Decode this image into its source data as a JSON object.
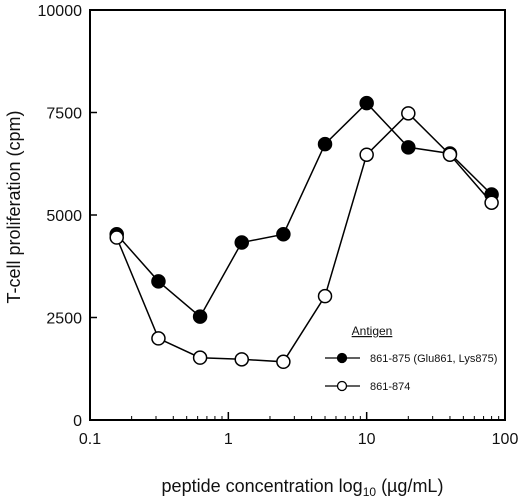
{
  "chart_data": {
    "type": "line",
    "xlabel": "peptide concentration  log",
    "xlabel_sub": "10",
    "xlabel_unit": " (µg/mL)",
    "ylabel": "T-cell proliferation (cpm)",
    "x_scale": "log",
    "xlim": [
      0.1,
      100
    ],
    "ylim": [
      0,
      10000
    ],
    "x_ticks": [
      0.1,
      1,
      10,
      100
    ],
    "x_tick_labels": [
      "0.1",
      "1",
      "10",
      "100"
    ],
    "y_ticks": [
      0,
      2500,
      5000,
      7500,
      10000
    ],
    "y_tick_labels": [
      "0",
      "2500",
      "5000",
      "7500",
      "10000"
    ],
    "grid": false,
    "legend": {
      "title": "Antigen",
      "placement": "lower-right"
    },
    "series": [
      {
        "name": "861-875 (Glu861, Lys875)",
        "marker": "filled-circle",
        "color": "#000000",
        "x": [
          0.156,
          0.3125,
          0.625,
          1.25,
          2.5,
          5,
          10,
          20,
          40,
          80
        ],
        "y": [
          4530,
          3380,
          2520,
          4330,
          4530,
          6730,
          7730,
          6650,
          6500,
          5500
        ]
      },
      {
        "name": "861-874",
        "marker": "open-circle",
        "color": "#000000",
        "x": [
          0.156,
          0.3125,
          0.625,
          1.25,
          2.5,
          5,
          10,
          20,
          40,
          80
        ],
        "y": [
          4450,
          1990,
          1520,
          1480,
          1420,
          3020,
          6470,
          7480,
          6470,
          5300
        ]
      }
    ]
  }
}
